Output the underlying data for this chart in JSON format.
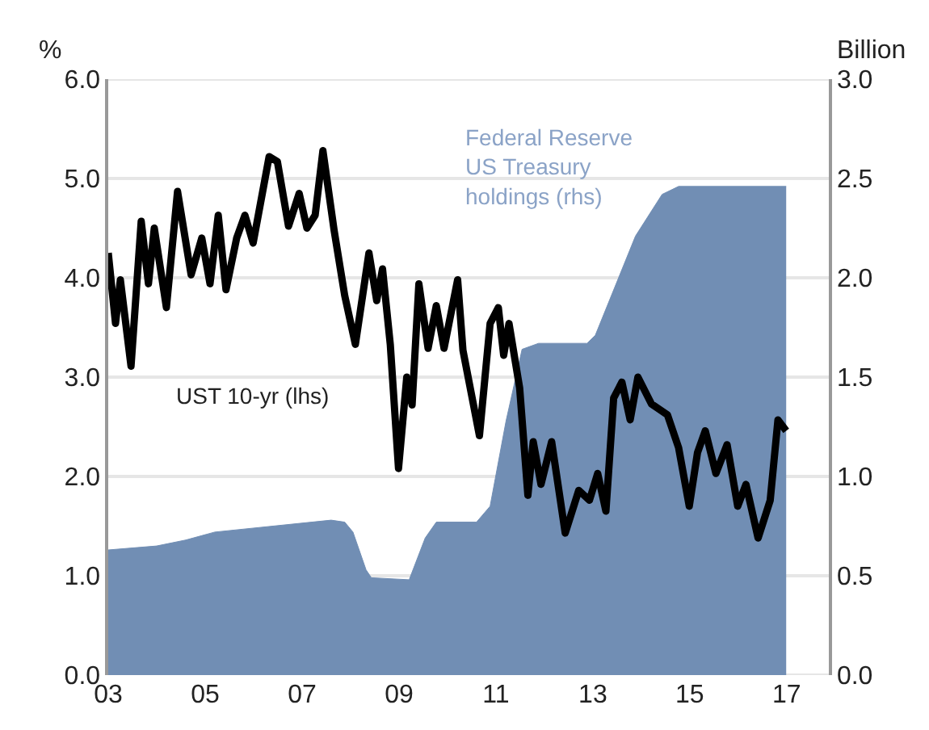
{
  "chart_data": {
    "type": "line",
    "ylabel": "%",
    "y2label": "Billion",
    "xlim": [
      2003,
      2017.87
    ],
    "ylim": [
      0,
      6
    ],
    "y2lim": [
      0,
      3
    ],
    "xticks": [
      {
        "value": 2003,
        "label": "03"
      },
      {
        "value": 2005,
        "label": "05"
      },
      {
        "value": 2007,
        "label": "07"
      },
      {
        "value": 2009,
        "label": "09"
      },
      {
        "value": 2011,
        "label": "11"
      },
      {
        "value": 2013,
        "label": "13"
      },
      {
        "value": 2015,
        "label": "15"
      },
      {
        "value": 2017,
        "label": "17"
      }
    ],
    "yticks": [
      {
        "value": 0,
        "label": "0.0"
      },
      {
        "value": 1,
        "label": "1.0"
      },
      {
        "value": 2,
        "label": "2.0"
      },
      {
        "value": 3,
        "label": "3.0"
      },
      {
        "value": 4,
        "label": "4.0"
      },
      {
        "value": 5,
        "label": "5.0"
      },
      {
        "value": 6,
        "label": "6.0"
      }
    ],
    "y2ticks": [
      {
        "value": 0,
        "label": "0.0"
      },
      {
        "value": 0.5,
        "label": "0.5"
      },
      {
        "value": 1,
        "label": "1.0"
      },
      {
        "value": 1.5,
        "label": "1.5"
      },
      {
        "value": 2,
        "label": "2.0"
      },
      {
        "value": 2.5,
        "label": "2.5"
      },
      {
        "value": 3,
        "label": "3.0"
      }
    ],
    "grid": "y",
    "legend": false,
    "series": [
      {
        "name": "Federal Reserve US Treasury holdings (rhs)",
        "type": "area",
        "axis": "y2",
        "color": "#718eb4",
        "x": [
          2003.0,
          2003.5,
          2004.0,
          2004.6,
          2005.2,
          2006.0,
          2006.8,
          2007.6,
          2007.88,
          2008.05,
          2008.32,
          2008.43,
          2009.21,
          2009.54,
          2009.77,
          2010.6,
          2010.88,
          2011.21,
          2011.54,
          2011.88,
          2012.88,
          2013.05,
          2013.88,
          2014.43,
          2014.77,
          2016.99
        ],
        "values": [
          0.63,
          0.64,
          0.65,
          0.68,
          0.72,
          0.74,
          0.76,
          0.78,
          0.77,
          0.72,
          0.53,
          0.49,
          0.48,
          0.69,
          0.77,
          0.77,
          0.85,
          1.28,
          1.64,
          1.67,
          1.67,
          1.71,
          2.21,
          2.42,
          2.46,
          2.46
        ]
      },
      {
        "name": "UST 10-yr (lhs)",
        "color": "#000000",
        "x": [
          2003.0,
          2003.15,
          2003.25,
          2003.47,
          2003.68,
          2003.83,
          2003.95,
          2004.2,
          2004.43,
          2004.71,
          2004.93,
          2005.1,
          2005.27,
          2005.43,
          2005.65,
          2005.82,
          2005.99,
          2006.32,
          2006.49,
          2006.72,
          2006.94,
          2007.1,
          2007.27,
          2007.43,
          2007.66,
          2007.88,
          2008.1,
          2008.38,
          2008.54,
          2008.66,
          2008.82,
          2008.99,
          2009.16,
          2009.27,
          2009.41,
          2009.6,
          2009.77,
          2009.93,
          2010.21,
          2010.32,
          2010.66,
          2010.88,
          2011.05,
          2011.16,
          2011.27,
          2011.49,
          2011.66,
          2011.77,
          2011.93,
          2012.15,
          2012.43,
          2012.71,
          2012.93,
          2013.1,
          2013.27,
          2013.43,
          2013.6,
          2013.77,
          2013.93,
          2014.21,
          2014.54,
          2014.77,
          2014.99,
          2015.16,
          2015.32,
          2015.54,
          2015.77,
          2015.99,
          2016.16,
          2016.41,
          2016.66,
          2016.82,
          2016.99
        ],
        "values": [
          4.25,
          3.54,
          3.98,
          3.11,
          4.57,
          3.94,
          4.5,
          3.7,
          4.87,
          4.03,
          4.4,
          3.94,
          4.63,
          3.88,
          4.4,
          4.63,
          4.35,
          5.22,
          5.17,
          4.52,
          4.85,
          4.5,
          4.63,
          5.28,
          4.48,
          3.82,
          3.33,
          4.25,
          3.77,
          4.09,
          3.33,
          2.08,
          3.0,
          2.72,
          3.94,
          3.29,
          3.72,
          3.29,
          3.98,
          3.27,
          2.41,
          3.54,
          3.7,
          3.22,
          3.54,
          2.89,
          1.81,
          2.35,
          1.92,
          2.35,
          1.43,
          1.86,
          1.76,
          2.03,
          1.65,
          2.79,
          2.95,
          2.57,
          3.0,
          2.73,
          2.62,
          2.29,
          1.7,
          2.24,
          2.46,
          2.03,
          2.32,
          1.7,
          1.92,
          1.38,
          1.76,
          2.57,
          2.46
        ]
      }
    ]
  }
}
